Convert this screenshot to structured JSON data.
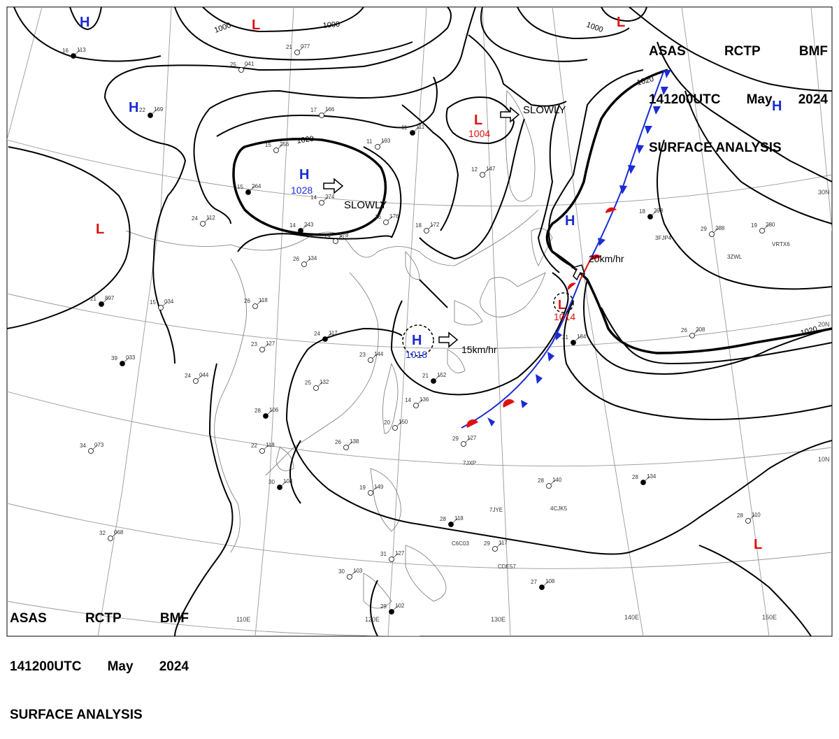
{
  "header_top_right": {
    "line1": [
      "ASAS",
      "RCTP",
      "BMF"
    ],
    "line2": [
      "141200UTC",
      "May",
      "2024"
    ],
    "line3": "SURFACE ANALYSIS"
  },
  "header_bottom_left": {
    "line1": [
      "ASAS",
      "RCTP",
      "BMF"
    ],
    "line2": [
      "141200UTC",
      "May",
      "2024"
    ],
    "line3": "SURFACE ANALYSIS"
  },
  "longitude_labels": [
    "110E",
    "120E",
    "130E",
    "140E",
    "150E"
  ],
  "latitude_labels": [
    "30N",
    "20N",
    "10N"
  ],
  "isobar_labels": [
    "1000",
    "1000",
    "1000",
    "1020",
    "1020",
    "1020"
  ],
  "pressure_centers": [
    {
      "type": "H",
      "value": "1028",
      "color": "#1a2bd6",
      "motion": "SLOWLY"
    },
    {
      "type": "H",
      "value": "1018",
      "color": "#1a2bd6",
      "motion": "15km/hr"
    },
    {
      "type": "L",
      "value": "1004",
      "color": "#e01010",
      "motion": "SLOWLY"
    },
    {
      "type": "L",
      "value": "1014",
      "color": "#e01010",
      "motion": "20km/hr"
    },
    {
      "type": "H",
      "value": "",
      "color": "#1a2bd6"
    },
    {
      "type": "L",
      "value": "",
      "color": "#e01010"
    }
  ],
  "colors": {
    "high": "#1a2bd6",
    "low": "#e01010",
    "cold_front": "#1a2bd6",
    "warm_front": "#e01010"
  },
  "station_samples": [
    {
      "t": "16",
      "p": "113"
    },
    {
      "t": "21",
      "p": "077"
    },
    {
      "t": "25",
      "p": "041"
    },
    {
      "t": "22",
      "p": "169"
    },
    {
      "t": "17",
      "p": "166"
    },
    {
      "t": "15",
      "p": "256"
    },
    {
      "t": "15",
      "p": "264"
    },
    {
      "t": "14",
      "p": "274"
    },
    {
      "t": "24",
      "p": "112"
    },
    {
      "t": "14",
      "p": "243"
    },
    {
      "t": "24",
      "p": "178"
    },
    {
      "t": "26",
      "p": "134"
    },
    {
      "t": "21",
      "p": "897"
    },
    {
      "t": "15",
      "p": "034"
    },
    {
      "t": "26",
      "p": "118"
    },
    {
      "t": "24",
      "p": "117"
    },
    {
      "t": "23",
      "p": "127"
    },
    {
      "t": "23",
      "p": "144"
    },
    {
      "t": "39",
      "p": "033"
    },
    {
      "t": "24",
      "p": "044"
    },
    {
      "t": "25",
      "p": "132"
    },
    {
      "t": "28",
      "p": "106"
    },
    {
      "t": "22",
      "p": "118"
    },
    {
      "t": "34",
      "p": "073"
    },
    {
      "t": "30",
      "p": "108"
    },
    {
      "t": "32",
      "p": "068"
    },
    {
      "t": "30",
      "p": "103"
    },
    {
      "t": "29",
      "p": "102"
    },
    {
      "t": "26",
      "p": "138"
    },
    {
      "t": "29",
      "p": "127"
    },
    {
      "t": "28",
      "p": "118"
    },
    {
      "t": "29",
      "p": "117"
    },
    {
      "t": "28",
      "p": "140"
    },
    {
      "t": "28",
      "p": "134"
    },
    {
      "t": "28",
      "p": "110"
    },
    {
      "t": "26",
      "p": "208"
    },
    {
      "t": "21",
      "p": "184"
    },
    {
      "t": "29",
      "p": "288"
    },
    {
      "t": "19",
      "p": "280"
    },
    {
      "t": "18",
      "p": "293"
    },
    {
      "t": "12",
      "p": "147"
    },
    {
      "t": "11",
      "p": "193"
    },
    {
      "t": "11",
      "p": "111"
    },
    {
      "t": "16",
      "p": "176"
    },
    {
      "t": "18",
      "p": "172"
    },
    {
      "t": "21",
      "p": "152"
    },
    {
      "t": "14",
      "p": "136"
    },
    {
      "t": "20",
      "p": "150"
    },
    {
      "t": "27",
      "p": "108"
    },
    {
      "t": "31",
      "p": "127"
    },
    {
      "t": "19",
      "p": "149"
    }
  ],
  "ship_ids": [
    "3FJP4",
    "VRTX6",
    "7JXP",
    "7JYE",
    "4CJK5",
    "C6C03",
    "CDE57",
    "3ZWL"
  ]
}
